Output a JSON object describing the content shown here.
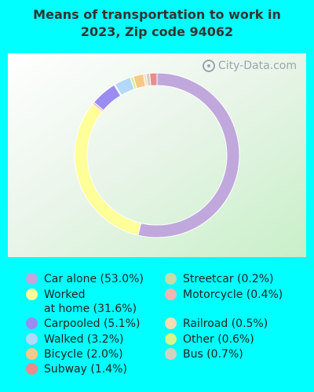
{
  "title_line1": "Means of transportation to work in",
  "title_line2": "2023, Zip code 94062",
  "watermark": "City-Data.com",
  "chart_data": {
    "type": "pie",
    "style": "donut",
    "title": "Means of transportation to work in 2023, Zip code 94062",
    "slices": [
      {
        "label": "Car alone",
        "value": 53.0,
        "display": "Car alone (53.0%)",
        "color": "#C0A8DC"
      },
      {
        "label": "Worked at home",
        "value": 31.6,
        "display": "Worked\nat home (31.6%)",
        "color": "#FFFF99"
      },
      {
        "label": "Motorcycle",
        "value": 0.4,
        "display": "Motorcycle (0.4%)",
        "color": "#F4B4B4"
      },
      {
        "label": "Carpooled",
        "value": 5.1,
        "display": "Carpooled (5.1%)",
        "color": "#9A8CF0"
      },
      {
        "label": "Streetcar",
        "value": 0.2,
        "display": "Streetcar (0.2%)",
        "color": "#C4DCA8"
      },
      {
        "label": "Walked",
        "value": 3.2,
        "display": "Walked (3.2%)",
        "color": "#B4D8FA"
      },
      {
        "label": "Other",
        "value": 0.6,
        "display": "Other (0.6%)",
        "color": "#D8F48C"
      },
      {
        "label": "Bicycle",
        "value": 2.0,
        "display": "Bicycle (2.0%)",
        "color": "#F8C888"
      },
      {
        "label": "Railroad",
        "value": 0.5,
        "display": "Railroad (0.5%)",
        "color": "#FADCB4"
      },
      {
        "label": "Bus",
        "value": 0.7,
        "display": "Bus (0.7%)",
        "color": "#D4D0C0"
      },
      {
        "label": "Subway",
        "value": 1.4,
        "display": "Subway (1.4%)",
        "color": "#E88C8C"
      }
    ],
    "legend_left": [
      "Car alone",
      "Worked at home",
      "Carpooled",
      "Walked",
      "Bicycle",
      "Subway"
    ],
    "legend_right": [
      "Streetcar",
      "Motorcycle",
      "Railroad",
      "Other",
      "Bus"
    ]
  }
}
